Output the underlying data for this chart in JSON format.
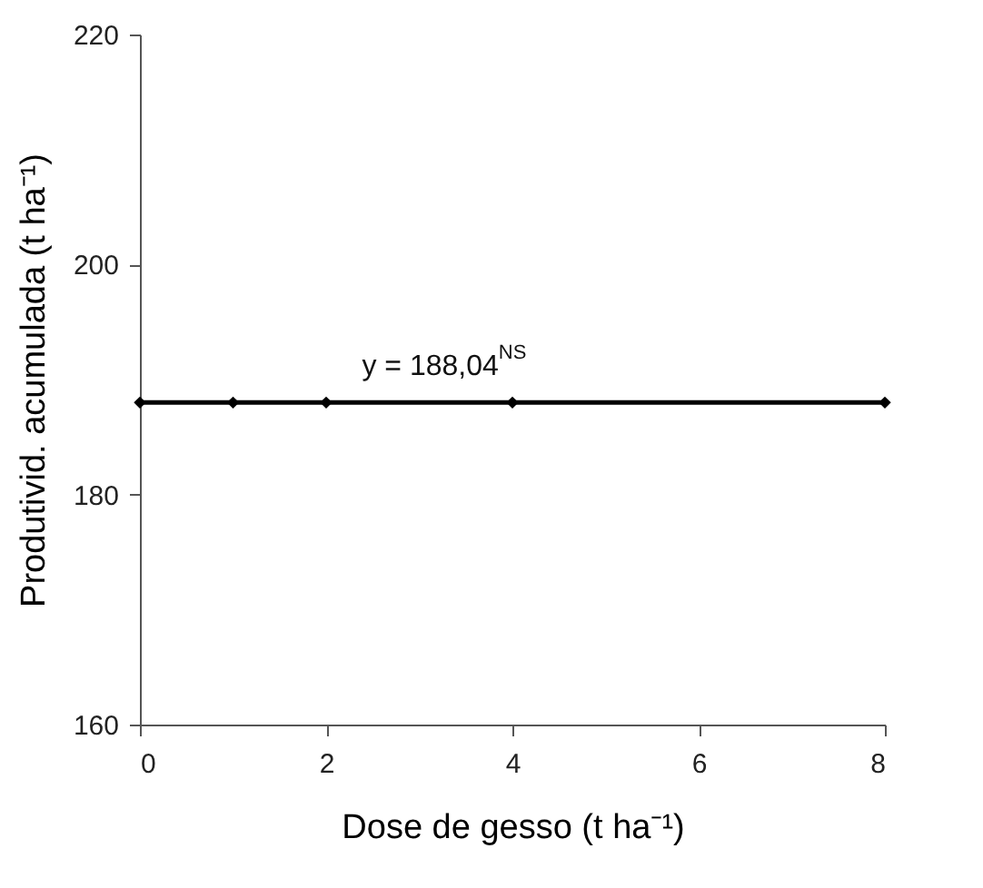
{
  "chart_data": {
    "type": "line",
    "xlabel": "Dose de gesso (t ha⁻¹)",
    "ylabel": "Produtivid. acumulada (t ha⁻¹)",
    "x": [
      0,
      1,
      2,
      4,
      8
    ],
    "series": [
      {
        "color": "#000000",
        "values": [
          188,
          188,
          188,
          188,
          188
        ]
      }
    ],
    "xlim": [
      0,
      8
    ],
    "xticks": [
      0,
      2,
      4,
      6,
      8
    ],
    "ylim": [
      160,
      220
    ],
    "yticks": [
      160,
      180,
      200,
      220
    ],
    "annotations": [
      {
        "text": "y =  188,04$^{NS}$",
        "x": 3.5,
        "y": 188.04
      }
    ],
    "marker": "diamond",
    "line_style": "solid",
    "grid": false
  }
}
